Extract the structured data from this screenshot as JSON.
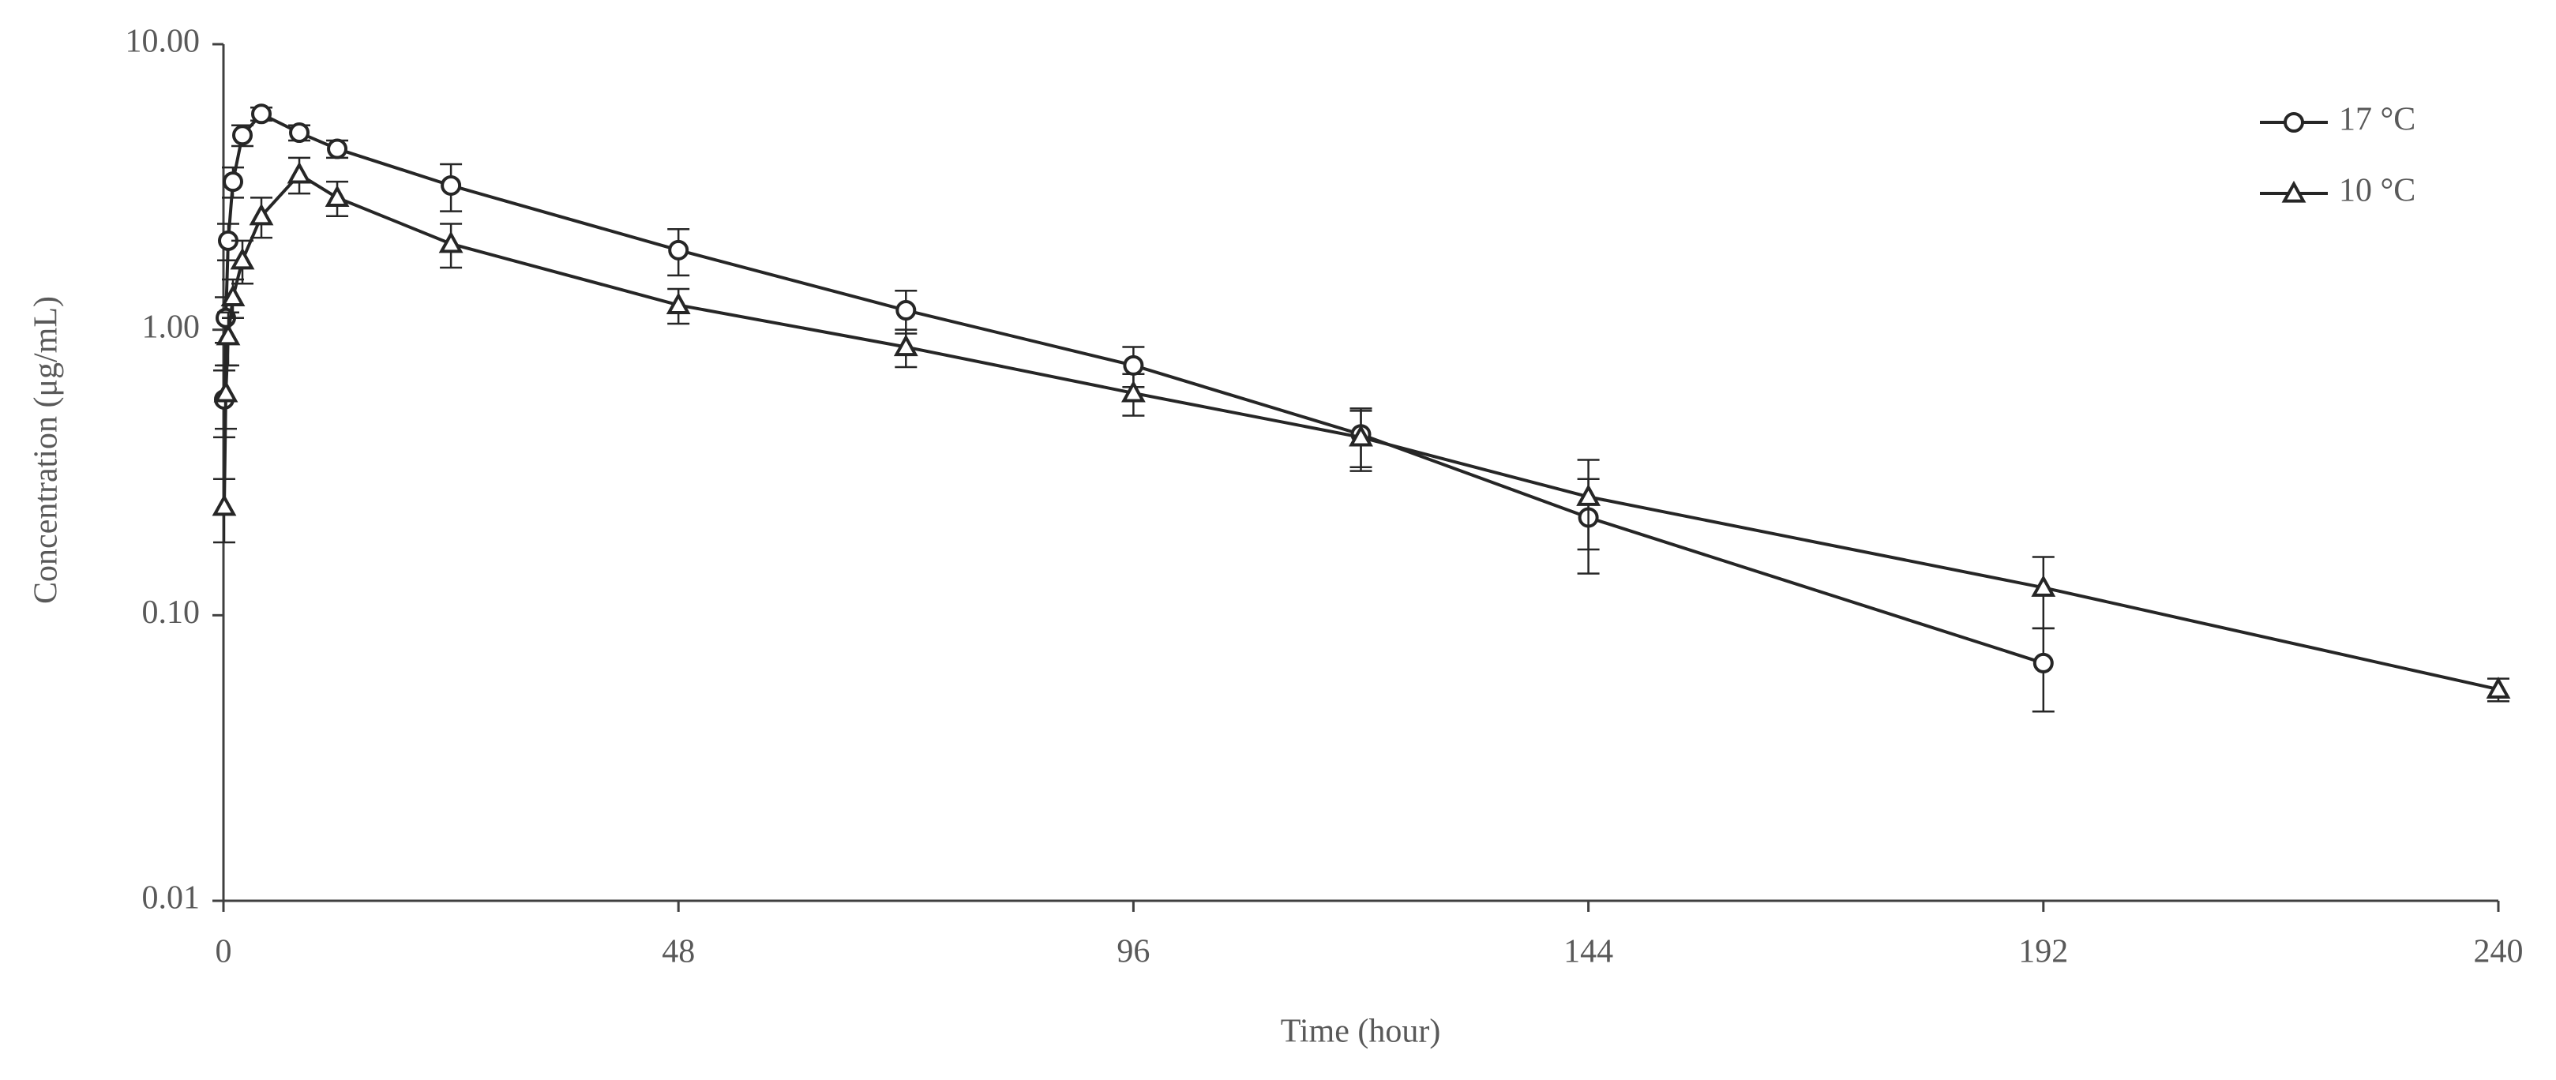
{
  "chart_data": {
    "type": "line",
    "xlabel": "Time (hour)",
    "ylabel": "Concentration  (μg/mL)",
    "yscale": "log",
    "xlim": [
      0,
      240
    ],
    "xticks": [
      0,
      48,
      96,
      144,
      192,
      240
    ],
    "ylim": [
      0.01,
      10
    ],
    "yticks": [
      {
        "value": 0.01,
        "label": "0.01"
      },
      {
        "value": 0.1,
        "label": "0.10"
      },
      {
        "value": 1,
        "label": "1.00"
      },
      {
        "value": 10,
        "label": "10.00"
      }
    ],
    "grid": false,
    "legend": "upper right",
    "series": [
      {
        "name": "17 °C",
        "color": "#262626",
        "marker": "circle",
        "x": [
          0.083,
          0.25,
          0.5,
          1,
          2,
          4,
          8,
          12,
          24,
          48,
          72,
          96,
          120,
          144,
          192
        ],
        "values": [
          0.57,
          1.1,
          2.05,
          3.3,
          4.8,
          5.7,
          4.9,
          4.3,
          3.2,
          1.9,
          1.17,
          0.75,
          0.43,
          0.22,
          0.068
        ],
        "errors": [
          0.15,
          0.2,
          0.3,
          0.4,
          0.4,
          0.3,
          0.3,
          0.3,
          0.6,
          0.35,
          0.2,
          0.12,
          0.1,
          0.08,
          0.022
        ]
      },
      {
        "name": "10 °C",
        "color": "#262626",
        "marker": "triangle",
        "x": [
          0.083,
          0.25,
          0.5,
          1,
          2,
          4,
          8,
          12,
          24,
          48,
          72,
          96,
          120,
          144,
          192,
          240
        ],
        "values": [
          0.24,
          0.6,
          0.95,
          1.3,
          1.75,
          2.5,
          3.5,
          2.9,
          2.0,
          1.22,
          0.87,
          0.6,
          0.42,
          0.26,
          0.125,
          0.055
        ],
        "errors": [
          0.06,
          0.15,
          0.2,
          0.2,
          0.3,
          0.4,
          0.5,
          0.4,
          0.35,
          0.17,
          0.13,
          0.1,
          0.1,
          0.09,
          0.035,
          0.005
        ]
      }
    ]
  }
}
